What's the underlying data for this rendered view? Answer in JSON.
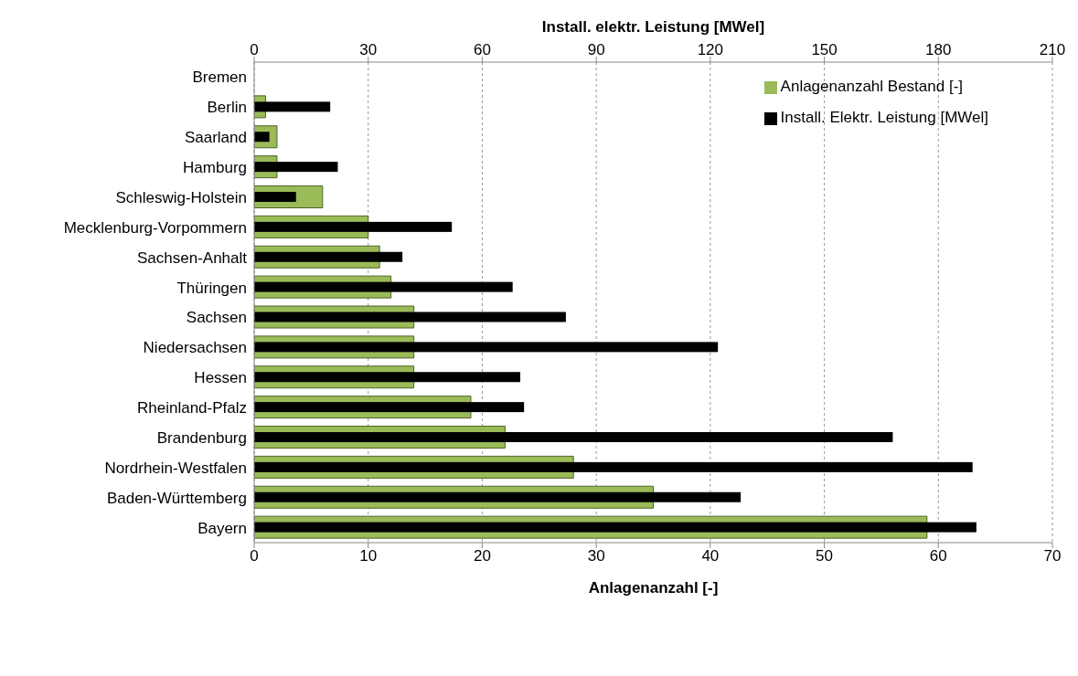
{
  "chart_data": {
    "type": "bar",
    "orientation": "horizontal",
    "xlabel": "Anlagenanzahl [-]",
    "x2label": "Install. elektr. Leistung [MWel]",
    "categories": [
      "Bremen",
      "Berlin",
      "Saarland",
      "Hamburg",
      "Schleswig-Holstein",
      "Mecklenburg-Vorpommern",
      "Sachsen-Anhalt",
      "Thüringen",
      "Sachsen",
      "Niedersachsen",
      "Hessen",
      "Rheinland-Pfalz",
      "Brandenburg",
      "Nordrhein-Westfalen",
      "Baden-Württemberg",
      "Bayern"
    ],
    "series": [
      {
        "name": "Anlagenanzahl Bestand [-]",
        "color": "#9bbb59",
        "values": [
          0,
          1,
          2,
          2,
          6,
          10,
          11,
          12,
          14,
          14,
          14,
          19,
          22,
          28,
          35,
          59
        ]
      },
      {
        "name": "Install. Elektr. Leistung [MWel]",
        "color": "#000000",
        "axis": "x2",
        "values": [
          0,
          20,
          4,
          22,
          11,
          52,
          39,
          68,
          82,
          122,
          70,
          71,
          168,
          189,
          128,
          190
        ]
      }
    ],
    "xlim": [
      0,
      70
    ],
    "xticks": [
      0,
      10,
      20,
      30,
      40,
      50,
      60,
      70
    ],
    "x2lim": [
      0,
      210
    ],
    "x2ticks": [
      0,
      30,
      60,
      90,
      120,
      150,
      180,
      210
    ],
    "grid": "x",
    "legend": "top right"
  }
}
